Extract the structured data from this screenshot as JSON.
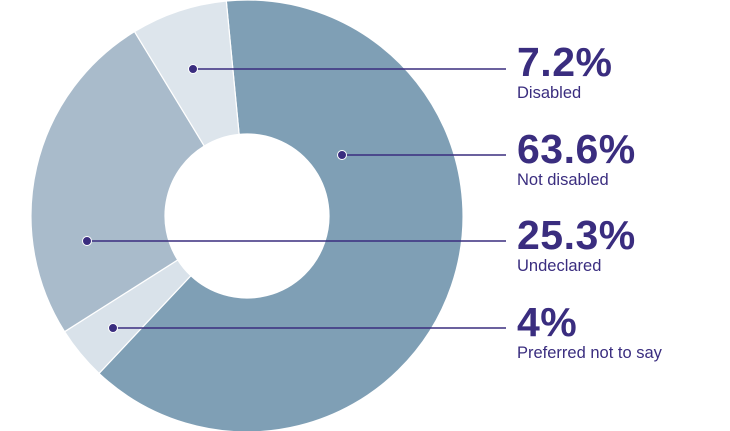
{
  "chart_data": {
    "type": "pie",
    "variant": "donut",
    "title": "",
    "slices": [
      {
        "label": "Not disabled",
        "value_label": "63.6%",
        "value": 63.6,
        "color": "#7f9fb5"
      },
      {
        "label": "Preferred not to say",
        "value_label": "4%",
        "value": 4,
        "color": "#d9e2ea"
      },
      {
        "label": "Undeclared",
        "value_label": "25.3%",
        "value": 25.3,
        "color": "#a9bbcb"
      },
      {
        "label": "Disabled",
        "value_label": "7.2%",
        "value": 7.2,
        "color": "#dde5ec"
      }
    ],
    "legend_order": [
      "Disabled",
      "Not disabled",
      "Undeclared",
      "Preferred not to say"
    ],
    "legend_placement": "right",
    "accent_color": "#3a2d7f"
  }
}
